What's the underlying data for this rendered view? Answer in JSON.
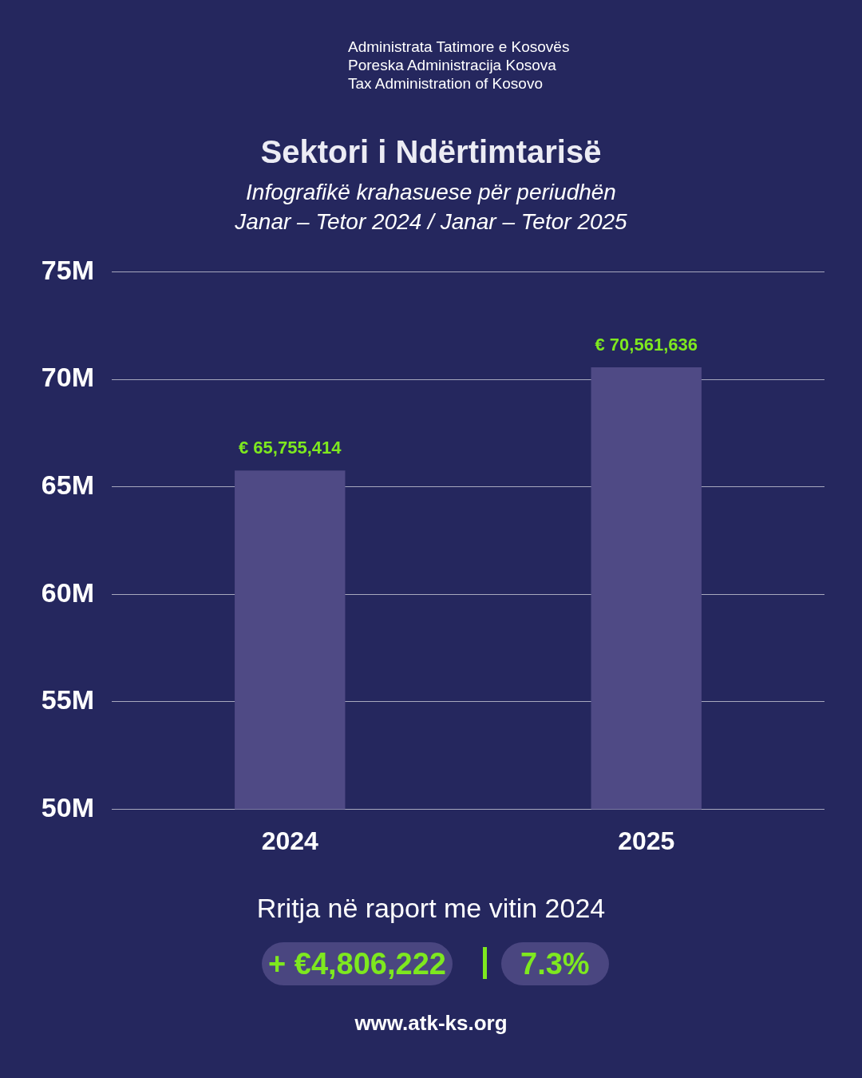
{
  "chart_data": {
    "type": "bar",
    "title": "Sektori i Ndërtimtarisë",
    "subtitle": "Infografikë krahasuese për periudhën\nJanar – Tetor 2024 / Janar – Tetor 2025",
    "categories": [
      "2024",
      "2025"
    ],
    "values": [
      65755414,
      70561636
    ],
    "value_labels": [
      "€ 65,755,414",
      "€ 70,561,636"
    ],
    "color": "#4f4a85",
    "ylim": [
      50000000,
      75000000
    ],
    "yticks": [
      {
        "value": 50000000,
        "label": "50M"
      },
      {
        "value": 55000000,
        "label": "55M"
      },
      {
        "value": 60000000,
        "label": "60M"
      },
      {
        "value": 65000000,
        "label": "65M"
      },
      {
        "value": 70000000,
        "label": "70M"
      },
      {
        "value": 75000000,
        "label": "75M"
      }
    ],
    "grid": "y",
    "annotations": [
      "Administrata Tatimore e Kosovës",
      "Poreska Administracija Kosova",
      "Tax Administration of Kosovo",
      "Rritja në raport me vitin 2024",
      "+ €4,806,222",
      "7.3%",
      "www.atk-ks.org"
    ]
  }
}
